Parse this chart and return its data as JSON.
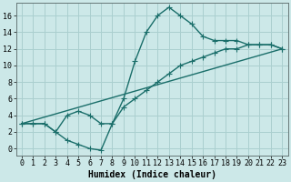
{
  "line1_x": [
    0,
    1,
    2,
    3,
    4,
    5,
    6,
    7,
    8,
    9,
    10,
    11,
    12,
    13,
    14,
    15,
    16,
    17,
    18,
    19,
    20,
    21,
    22,
    23
  ],
  "line1_y": [
    3,
    3,
    3,
    2,
    1,
    0.5,
    0,
    -0.2,
    3,
    6,
    10.5,
    14,
    16,
    17,
    16,
    15,
    13.5,
    13,
    13,
    13,
    12.5,
    12.5,
    12.5,
    12
  ],
  "line2_x": [
    0,
    1,
    2,
    3,
    4,
    5,
    6,
    7,
    8,
    9,
    10,
    11,
    12,
    13,
    14,
    15,
    16,
    17,
    18,
    19,
    20,
    21,
    22,
    23
  ],
  "line2_y": [
    3,
    3,
    3,
    2,
    4,
    4.5,
    4,
    3,
    3,
    5,
    6,
    7,
    8,
    9,
    10,
    10.5,
    11,
    11.5,
    12,
    12,
    12.5,
    12.5,
    12.5,
    12
  ],
  "line3_x": [
    0,
    23
  ],
  "line3_y": [
    3,
    12
  ],
  "bg_color": "#cce8e8",
  "grid_color": "#aacfcf",
  "line_color": "#1a6e6a",
  "marker": "+",
  "markersize": 4,
  "linewidth": 1.0,
  "xlabel": "Humidex (Indice chaleur)",
  "xlabel_fontsize": 7,
  "tick_fontsize": 6,
  "xlim": [
    -0.5,
    23.5
  ],
  "ylim": [
    -0.8,
    17.5
  ],
  "xticks": [
    0,
    1,
    2,
    3,
    4,
    5,
    6,
    7,
    8,
    9,
    10,
    11,
    12,
    13,
    14,
    15,
    16,
    17,
    18,
    19,
    20,
    21,
    22,
    23
  ],
  "yticks": [
    0,
    2,
    4,
    6,
    8,
    10,
    12,
    14,
    16
  ]
}
